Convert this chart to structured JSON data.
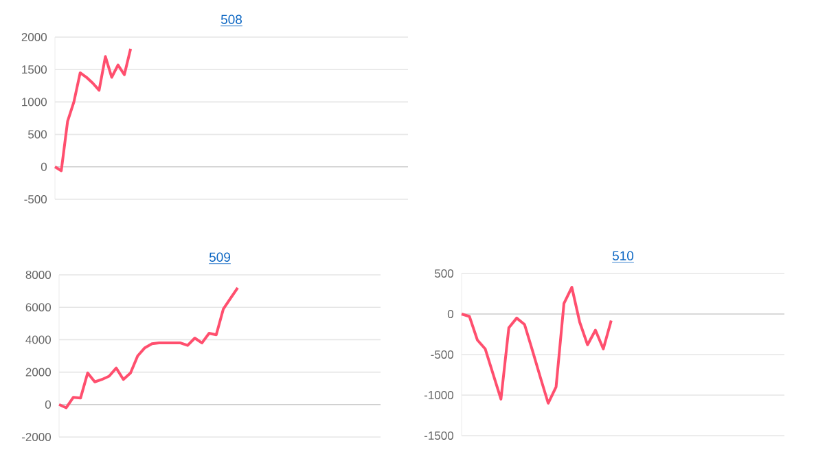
{
  "chart_data": [
    {
      "type": "line",
      "title": "508",
      "categories": [
        null,
        null,
        null,
        null,
        null,
        null,
        null,
        null,
        null,
        null,
        null,
        null,
        null,
        null,
        null,
        null,
        null,
        null,
        null,
        null,
        null,
        null,
        null,
        null,
        null,
        null,
        null,
        null,
        null,
        null,
        null,
        null,
        null,
        null,
        null,
        null,
        null,
        null,
        null,
        null,
        null,
        null,
        null,
        null,
        null,
        null,
        null,
        null,
        null,
        null,
        null,
        null,
        null,
        null,
        null,
        null,
        null
      ],
      "series": [
        {
          "color": "#ff4f6e",
          "values": [
            0,
            -60,
            700,
            1000,
            1450,
            1380,
            1290,
            1180,
            1700,
            1380,
            1570,
            1420,
            1820,
            null,
            null,
            null,
            null,
            null,
            null,
            null,
            null,
            null,
            null,
            null,
            null,
            null,
            null,
            null,
            null,
            null,
            null,
            null,
            null,
            null,
            null,
            null,
            null,
            null,
            null,
            null,
            null,
            null,
            null,
            null,
            null,
            null,
            null,
            null,
            null,
            null,
            null,
            null,
            null,
            null,
            null,
            null,
            null
          ]
        }
      ],
      "ylim": [
        -500,
        2000
      ],
      "yticks": [
        -500,
        0,
        500,
        1000,
        1500,
        2000
      ],
      "grid": "y",
      "tick_labels": "y"
    },
    {
      "type": "line",
      "title": "509",
      "categories": [
        null,
        null,
        null,
        null,
        null,
        null,
        null,
        null,
        null,
        null,
        null,
        null,
        null,
        null,
        null,
        null,
        null,
        null,
        null,
        null,
        null,
        null,
        null,
        null,
        null,
        null,
        null,
        null,
        null,
        null,
        null,
        null,
        null,
        null,
        null,
        null,
        null,
        null,
        null,
        null,
        null,
        null,
        null,
        null,
        null,
        null
      ],
      "series": [
        {
          "color": "#ff4f6e",
          "values": [
            0,
            -200,
            450,
            400,
            1950,
            1400,
            1550,
            1750,
            2250,
            1550,
            1950,
            3000,
            3500,
            3750,
            3800,
            3800,
            3800,
            3800,
            3650,
            4100,
            3800,
            4400,
            4300,
            5900,
            6550,
            7200,
            null,
            null,
            null,
            null,
            null,
            null,
            null,
            null,
            null,
            null,
            null,
            null,
            null,
            null,
            null,
            null,
            null,
            null,
            null,
            null
          ]
        }
      ],
      "ylim": [
        -2000,
        8000
      ],
      "yticks": [
        -2000,
        0,
        2000,
        4000,
        6000,
        8000
      ],
      "grid": "y",
      "tick_labels": "y"
    },
    {
      "type": "line",
      "title": "510",
      "categories": [
        null,
        null,
        null,
        null,
        null,
        null,
        null,
        null,
        null,
        null,
        null,
        null,
        null,
        null,
        null,
        null,
        null,
        null,
        null,
        null,
        null,
        null,
        null,
        null,
        null,
        null,
        null,
        null,
        null,
        null,
        null,
        null,
        null,
        null,
        null,
        null,
        null,
        null,
        null,
        null,
        null,
        null
      ],
      "series": [
        {
          "color": "#ff4f6e",
          "values": [
            0,
            -30,
            -320,
            -430,
            -740,
            -1050,
            -170,
            -50,
            -130,
            -450,
            -780,
            -1100,
            -900,
            130,
            330,
            -100,
            -380,
            -200,
            -430,
            -80,
            null,
            null,
            null,
            null,
            null,
            null,
            null,
            null,
            null,
            null,
            null,
            null,
            null,
            null,
            null,
            null,
            null,
            null,
            null,
            null,
            null,
            null
          ]
        }
      ],
      "ylim": [
        -1500,
        500
      ],
      "yticks": [
        -1500,
        -1000,
        -500,
        0,
        500
      ],
      "grid": "y",
      "tick_labels": "y"
    }
  ]
}
